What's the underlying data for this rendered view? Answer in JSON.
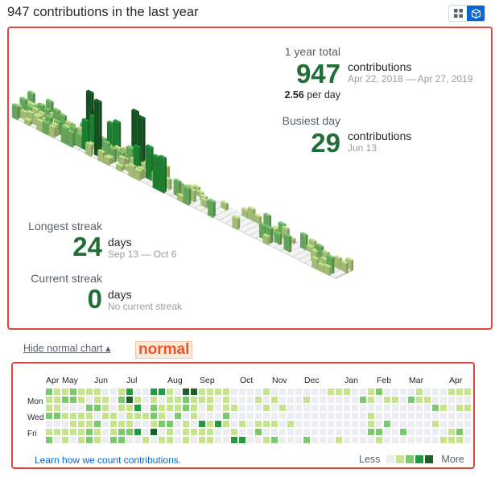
{
  "header": {
    "title": "947 contributions in the last year"
  },
  "view_toggle": {
    "normal_icon": "grid-icon",
    "iso_icon": "cube-icon"
  },
  "iso_stats": {
    "total_label": "1 year total",
    "total_value": "947",
    "total_unit": "contributions",
    "total_range": "Apr 22, 2018 — Apr 27, 2019",
    "per_day_value": "2.56",
    "per_day_unit": "per day",
    "busiest_label": "Busiest day",
    "busiest_value": "29",
    "busiest_unit": "contributions",
    "busiest_date": "Jun 13",
    "longest_label": "Longest streak",
    "longest_value": "24",
    "longest_unit": "days",
    "longest_range": "Sep 13 — Oct 6",
    "current_label": "Current streak",
    "current_value": "0",
    "current_unit": "days",
    "current_note": "No current streak"
  },
  "toggle_link": {
    "label": "Hide normal chart ▴"
  },
  "annotation": {
    "label": "normal"
  },
  "calendar": {
    "months": [
      "Apr",
      "May",
      "Jun",
      "Jul",
      "Aug",
      "Sep",
      "Oct",
      "Nov",
      "Dec",
      "Jan",
      "Feb",
      "Mar",
      "Apr"
    ],
    "days": [
      "Mon",
      "Wed",
      "Fri"
    ],
    "learn_link": "Learn how we count contributions.",
    "legend_less": "Less",
    "legend_more": "More"
  },
  "colors": {
    "level0": "#ebedf0",
    "level1": "#c6e48b",
    "level2": "#7bc96f",
    "level3": "#239a3b",
    "level4": "#196127",
    "accent": "#216e39",
    "annotation_border": "#e0463b",
    "toggle_active": "#0366d6"
  }
}
